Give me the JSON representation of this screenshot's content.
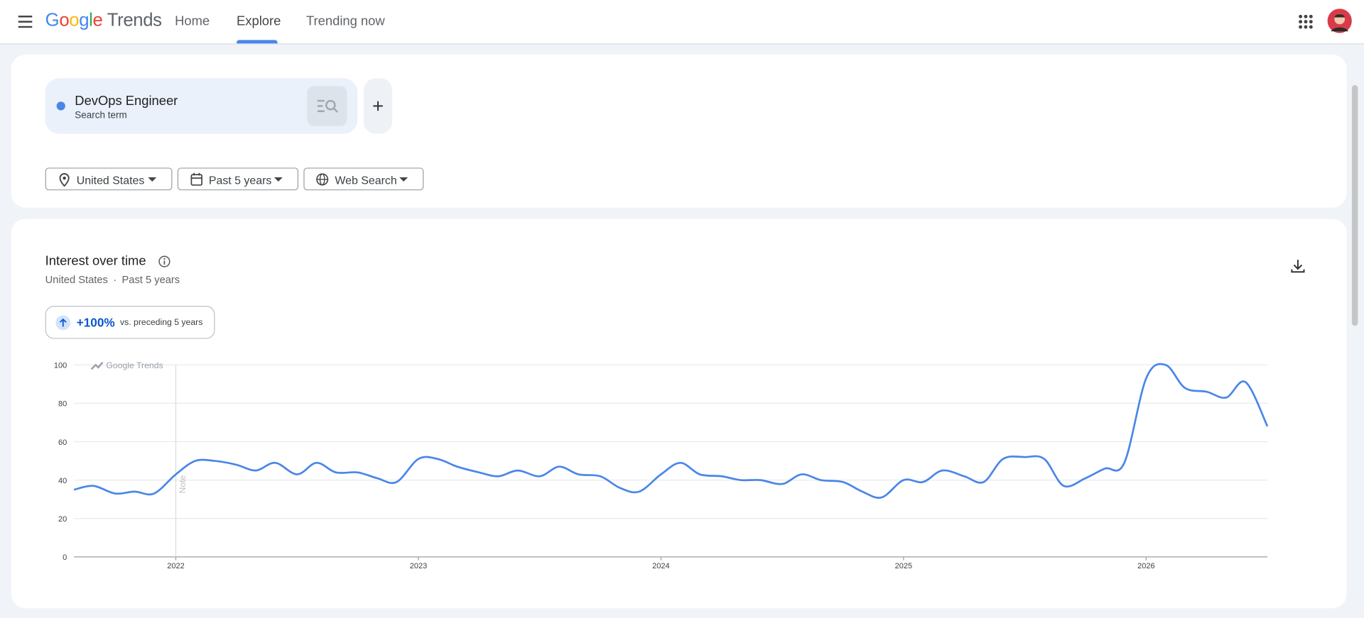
{
  "header": {
    "brand": "Google",
    "product": "Trends",
    "nav": [
      "Home",
      "Explore",
      "Trending now"
    ]
  },
  "search": {
    "kind": "Search term"
  },
  "filters": [
    "United States",
    "Past 5 years",
    "Web Search"
  ],
  "panel": {
    "title": "Interest over time",
    "subtitle": [
      "United States",
      "Past 5 years"
    ],
    "change": "+100%",
    "change_note": "vs. preceding 5 years"
  },
  "chart_data": {
    "type": "line",
    "watermark": "Google Trends",
    "annotations": [
      {
        "x": 2022.0,
        "text": "Note"
      }
    ],
    "x": [
      2021.58,
      2021.66,
      2021.75,
      2021.83,
      2021.91,
      2022.0,
      2022.08,
      2022.16,
      2022.25,
      2022.33,
      2022.41,
      2022.5,
      2022.58,
      2022.66,
      2022.75,
      2022.83,
      2022.91,
      2023.0,
      2023.08,
      2023.16,
      2023.25,
      2023.33,
      2023.41,
      2023.5,
      2023.58,
      2023.66,
      2023.75,
      2023.83,
      2023.91,
      2024.0,
      2024.08,
      2024.16,
      2024.25,
      2024.33,
      2024.41,
      2024.5,
      2024.58,
      2024.66,
      2024.75,
      2024.83,
      2024.91,
      2025.0,
      2025.08,
      2025.16,
      2025.25,
      2025.33,
      2025.41,
      2025.5,
      2025.58,
      2025.66,
      2025.75,
      2025.83,
      2025.91,
      2026.0,
      2026.08,
      2026.16,
      2026.25,
      2026.33,
      2026.41,
      2026.5
    ],
    "series": [
      {
        "name": "DevOps Engineer",
        "color": "#4a86e8",
        "values": [
          35,
          37,
          33,
          34,
          33,
          43,
          50,
          50,
          48,
          45,
          49,
          43,
          49,
          44,
          44,
          41,
          39,
          51,
          51,
          47,
          44,
          42,
          45,
          42,
          47,
          43,
          42,
          36,
          34,
          43,
          49,
          43,
          42,
          40,
          40,
          38,
          43,
          40,
          39,
          34,
          31,
          40,
          39,
          45,
          42,
          39,
          51,
          52,
          51,
          37,
          41,
          46,
          49,
          93,
          100,
          88,
          86,
          83,
          91,
          68
        ]
      }
    ],
    "xlim": [
      2021.58,
      2026.5
    ],
    "xticks": [
      2022,
      2023,
      2024,
      2025,
      2026
    ],
    "ylim": [
      0,
      100
    ],
    "yticks": [
      0,
      20,
      40,
      60,
      80,
      100
    ],
    "grid": true
  }
}
